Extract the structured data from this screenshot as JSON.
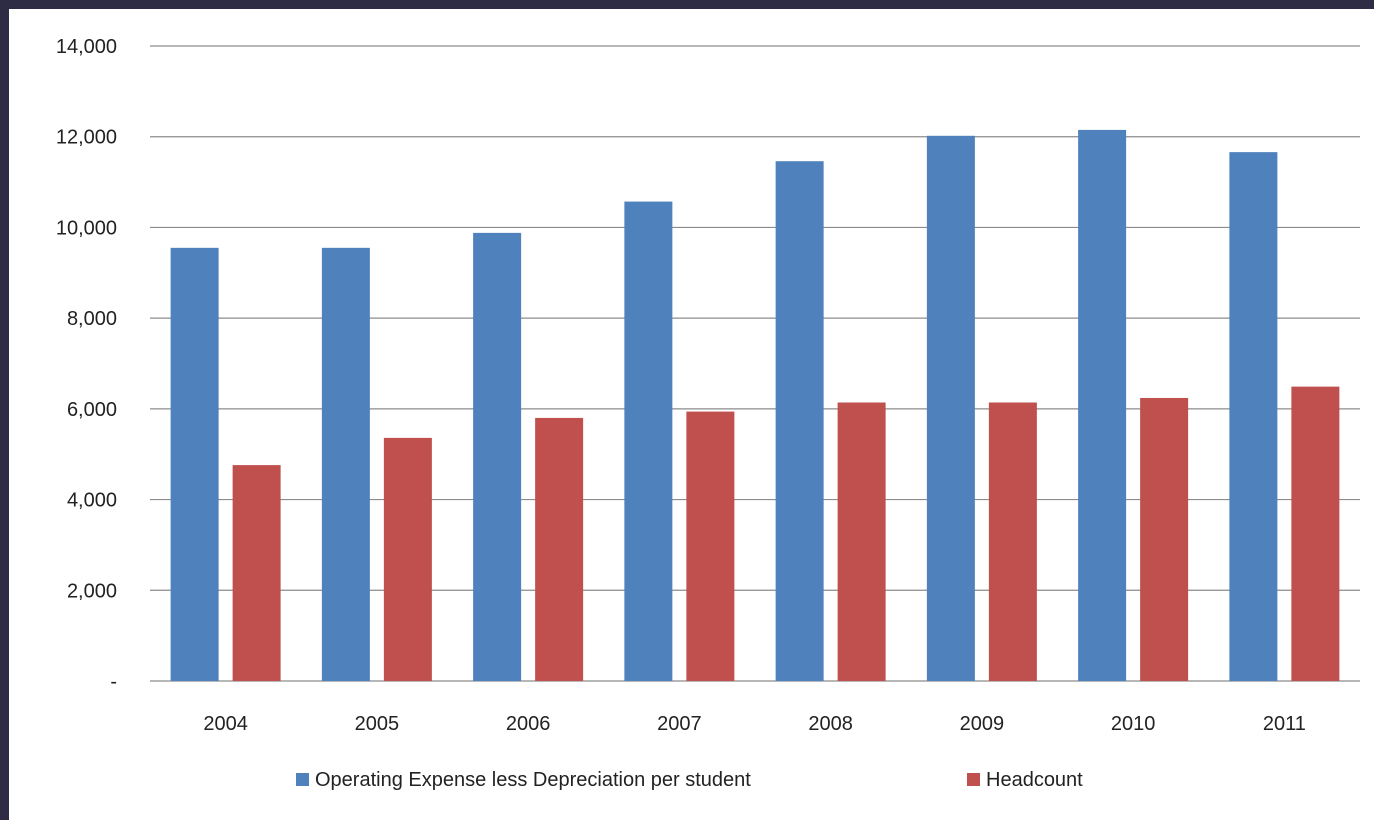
{
  "chart_data": {
    "type": "bar",
    "title": "",
    "xlabel": "",
    "ylabel": "",
    "categories": [
      "2004",
      "2005",
      "2006",
      "2007",
      "2008",
      "2009",
      "2010",
      "2011"
    ],
    "series": [
      {
        "name": "Operating Expense less Depreciation per student",
        "color": "#4f81bd",
        "values": [
          9550,
          9550,
          9880,
          10570,
          11460,
          12020,
          12150,
          11660
        ]
      },
      {
        "name": "Headcount",
        "color": "#c0504d",
        "values": [
          4760,
          5360,
          5800,
          5940,
          6140,
          6140,
          6240,
          6490
        ]
      }
    ],
    "ylim": [
      0,
      14000
    ],
    "yticks": [
      0,
      2000,
      4000,
      6000,
      8000,
      10000,
      12000,
      14000
    ],
    "ytick_labels": [
      "-",
      "2,000",
      "4,000",
      "6,000",
      "8,000",
      "10,000",
      "12,000",
      "14,000"
    ],
    "grid": true,
    "legend_position": "bottom"
  }
}
